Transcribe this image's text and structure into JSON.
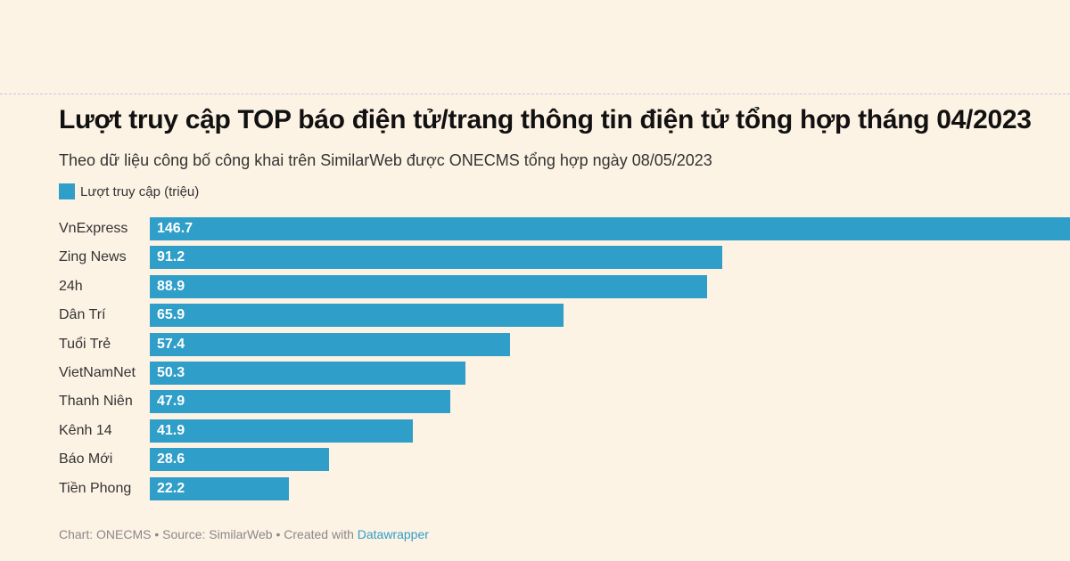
{
  "chart_data": {
    "type": "bar",
    "orientation": "horizontal",
    "title": "Lượt truy cập TOP báo điện tử/trang thông tin điện tử tổng hợp tháng 04/2023",
    "subtitle": "Theo dữ liệu công bố công khai trên SimilarWeb được ONECMS tổng hợp ngày 08/05/2023",
    "categories": [
      "VnExpress",
      "Zing News",
      "24h",
      "Dân Trí",
      "Tuổi Trẻ",
      "VietNamNet",
      "Thanh Niên",
      "Kênh 14",
      "Báo Mới",
      "Tiền Phong"
    ],
    "series": [
      {
        "name": "Lượt truy cập (triệu)",
        "values": [
          146.7,
          91.2,
          88.9,
          65.9,
          57.4,
          50.3,
          47.9,
          41.9,
          28.6,
          22.2
        ]
      }
    ],
    "xlim": [
      0,
      146.7
    ],
    "legend": "top-left",
    "grid": false,
    "bar_color": "#2f9ec9"
  },
  "footer": {
    "text": "Chart: ONECMS • Source: SimilarWeb • Created with ",
    "link": "Datawrapper"
  },
  "colors": {
    "background": "#fdf3e5",
    "link": "#2f9ec9"
  }
}
